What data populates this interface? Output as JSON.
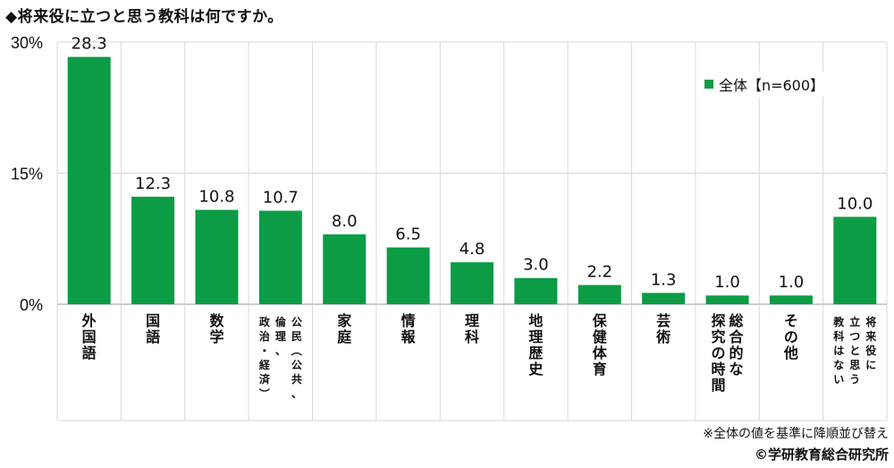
{
  "title": "◆将来役に立つと思う教科は何ですか。",
  "colors": {
    "bar": "#0b9c45",
    "grid": "#d9d9d9",
    "axis": "#bbbbbb",
    "text": "#111111"
  },
  "chart_data": {
    "type": "bar",
    "title": "◆将来役に立つと思う教科は何ですか。",
    "ylim": [
      0,
      30
    ],
    "yticks": [
      {
        "value": 0,
        "label": "0%"
      },
      {
        "value": 15,
        "label": "15%"
      },
      {
        "value": 30,
        "label": "30%"
      }
    ],
    "categories": [
      "外国語",
      "国語",
      "数学",
      "公民（公共、倫理、政治・経済）",
      "家庭",
      "情報",
      "理科",
      "地理歴史",
      "保健体育",
      "芸術",
      "総合的な探究の時間",
      "その他",
      "将来役に立つと思う教科はない"
    ],
    "category_lines": [
      [
        "外国語"
      ],
      [
        "国語"
      ],
      [
        "数学"
      ],
      [
        "公民（公共、",
        "倫理、",
        "政治・経済）"
      ],
      [
        "家庭"
      ],
      [
        "情報"
      ],
      [
        "理科"
      ],
      [
        "地理歴史"
      ],
      [
        "保健体育"
      ],
      [
        "芸術"
      ],
      [
        "総合的な",
        "探究の時間"
      ],
      [
        "その他"
      ],
      [
        "将来役に",
        "立つと思う",
        "教科はない"
      ]
    ],
    "series": [
      {
        "name": "全体【n=600】",
        "values": [
          28.3,
          12.3,
          10.8,
          10.7,
          8.0,
          6.5,
          4.8,
          3.0,
          2.2,
          1.3,
          1.0,
          1.0,
          10.0
        ],
        "labels": [
          "28.3",
          "12.3",
          "10.8",
          "10.7",
          "8.0",
          "6.5",
          "4.8",
          "3.0",
          "2.2",
          "1.3",
          "1.0",
          "1.0",
          "10.0"
        ]
      }
    ],
    "legend": "top-right",
    "grid": true
  },
  "footnote": "※全体の値を基準に降順並び替え",
  "copyright": "©学研教育総合研究所"
}
